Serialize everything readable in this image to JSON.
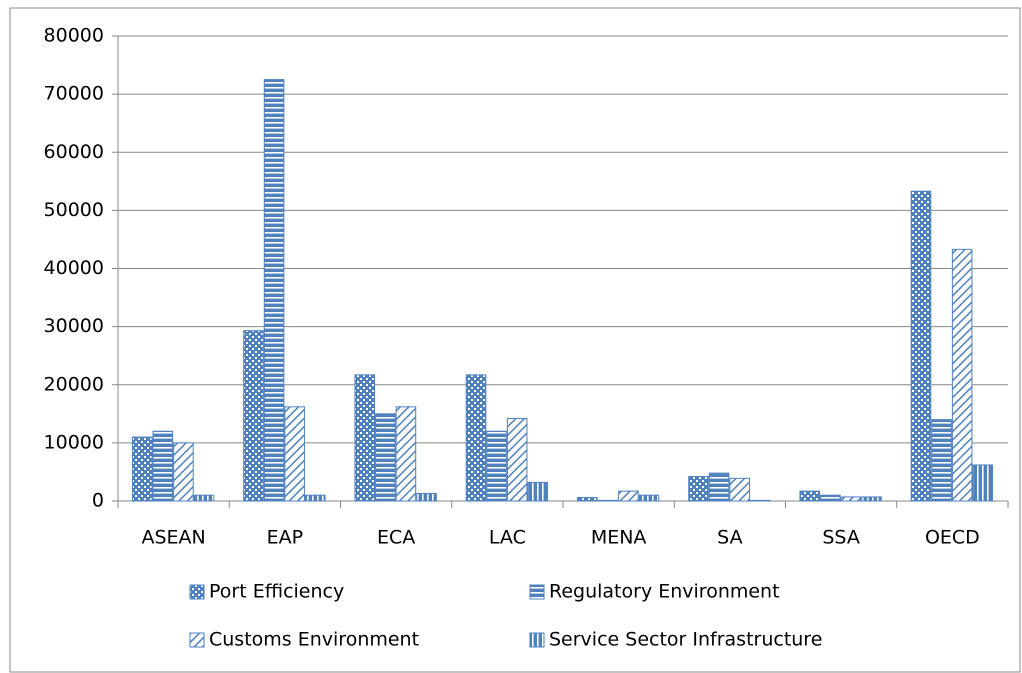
{
  "chart_data": {
    "type": "bar",
    "categories": [
      "ASEAN",
      "EAP",
      "ECA",
      "LAC",
      "MENA",
      "SA",
      "SSA",
      "OECD"
    ],
    "series": [
      {
        "name": "Port Efficiency",
        "color": "#4f81bd",
        "values": [
          11000,
          29300,
          21700,
          21700,
          600,
          4200,
          1700,
          53300
        ]
      },
      {
        "name": "Regulatory Environment",
        "color": "#4f81bd",
        "values": [
          12000,
          72500,
          15000,
          12000,
          100,
          4800,
          1000,
          14000
        ]
      },
      {
        "name": "Customs Environment",
        "color": "#4f81bd",
        "values": [
          10000,
          16200,
          16200,
          14200,
          1700,
          3900,
          700,
          43300
        ]
      },
      {
        "name": "Service Sector Infrastructure",
        "color": "#4f81bd",
        "values": [
          1000,
          1000,
          1300,
          3200,
          1000,
          100,
          700,
          6200
        ]
      }
    ],
    "ylim": [
      0,
      80000
    ],
    "yticks": [
      0,
      10000,
      20000,
      30000,
      40000,
      50000,
      60000,
      70000,
      80000
    ],
    "grid": true,
    "legend": "bottom"
  }
}
